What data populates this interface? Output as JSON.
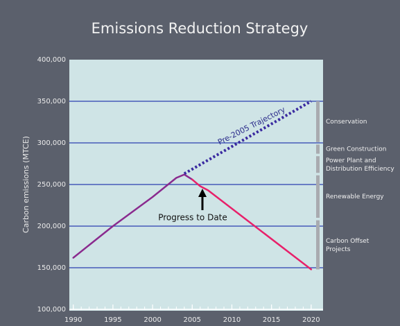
{
  "chart_data": {
    "type": "line",
    "title": "Emissions Reduction Strategy",
    "y_label": "Carbon emissions (MTCE)",
    "xlim": [
      1989.5,
      2021.5
    ],
    "xticks": [
      1990,
      1995,
      2000,
      2005,
      2010,
      2015,
      2020
    ],
    "xminorticks": [
      1990,
      1991,
      1992,
      1993,
      1994,
      1995,
      1996,
      1997,
      1998,
      1999,
      2000,
      2001,
      2002,
      2003,
      2004,
      2005,
      2006,
      2007,
      2008,
      2009,
      2010,
      2011,
      2012,
      2013,
      2014,
      2015,
      2016,
      2017,
      2018,
      2019,
      2020
    ],
    "ylim": [
      100000,
      400000
    ],
    "yticks": [
      {
        "value": 100000,
        "label": "100,000"
      },
      {
        "value": 150000,
        "label": "150,000"
      },
      {
        "value": 200000,
        "label": "200,000"
      },
      {
        "value": 250000,
        "label": "250,000"
      },
      {
        "value": 300000,
        "label": "300,000"
      },
      {
        "value": 350000,
        "label": "350,000"
      },
      {
        "value": 400000,
        "label": "400,000"
      }
    ],
    "grid": true,
    "grid_color": "#2a3fb0",
    "series": [
      {
        "color": "#8a2a8e",
        "style": "solid",
        "x": [
          1990,
          1995,
          2000,
          2003,
          2004,
          2005
        ],
        "values": [
          162000,
          200000,
          235000,
          258000,
          262000,
          256000
        ]
      },
      {
        "color": "#e8206a",
        "style": "solid",
        "x": [
          2005,
          2006,
          2007,
          2020
        ],
        "values": [
          256000,
          248000,
          243000,
          148000
        ]
      },
      {
        "color": "#3a2aa0",
        "style": "dotted",
        "x": [
          2004,
          2020
        ],
        "values": [
          263000,
          350000
        ]
      }
    ],
    "annotations": [
      "Pre-2005 Trajectory",
      "Progress to Date"
    ],
    "bracket": [
      {
        "label": "Conservation",
        "from": 350000,
        "to": 301000
      },
      {
        "label": "Green Construction",
        "from": 298000,
        "to": 287000
      },
      {
        "label": "Power Plant and Distribution Efficiency",
        "from": 284000,
        "to": 264000
      },
      {
        "label": "Renewable Energy",
        "from": 261000,
        "to": 210000
      },
      {
        "label": "Carbon Offset Projects",
        "from": 207000,
        "to": 148000
      }
    ]
  }
}
